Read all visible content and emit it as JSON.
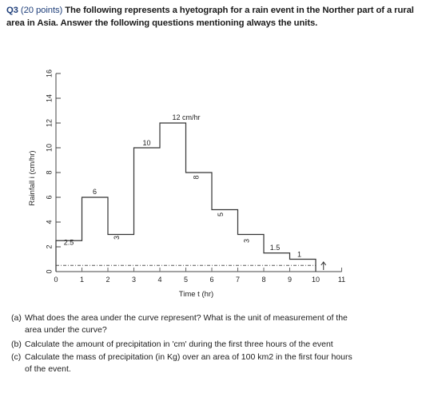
{
  "question": {
    "label": "Q3",
    "points": "(20 points)",
    "text": "The following represents a hyetograph for a rain event in the Norther part of a rural area in Asia.  Answer the following questions mentioning always the units."
  },
  "chart_data": {
    "type": "bar",
    "xlabel": "Time t (hr)",
    "ylabel": "Rainfall i (cm/hr)",
    "xlim": [
      0,
      11
    ],
    "ylim": [
      0,
      16
    ],
    "x_ticks": [
      0,
      1,
      2,
      3,
      4,
      5,
      6,
      7,
      8,
      9,
      10,
      11
    ],
    "y_ticks": [
      0,
      2,
      4,
      6,
      8,
      10,
      12,
      14,
      16
    ],
    "y_tick_labels": [
      "0",
      "2",
      "4",
      "6",
      "8",
      "10",
      "12",
      "14",
      "16"
    ],
    "x_tick_labels": [
      "0",
      "1",
      "2",
      "3",
      "4",
      "5",
      "6",
      "7",
      "8",
      "9",
      "10",
      "11"
    ],
    "bars": [
      {
        "x0": 0,
        "x1": 1,
        "value": 2.5,
        "label": "2.5"
      },
      {
        "x0": 1,
        "x1": 2,
        "value": 6,
        "label": "6"
      },
      {
        "x0": 2,
        "x1": 3,
        "value": 3,
        "label": "3"
      },
      {
        "x0": 3,
        "x1": 4,
        "value": 10,
        "label": "10"
      },
      {
        "x0": 4,
        "x1": 5,
        "value": 12,
        "label": "12 cm/hr"
      },
      {
        "x0": 5,
        "x1": 6,
        "value": 8,
        "label": "8"
      },
      {
        "x0": 6,
        "x1": 7,
        "value": 5,
        "label": "5"
      },
      {
        "x0": 7,
        "x1": 8,
        "value": 3,
        "label": "3"
      },
      {
        "x0": 8,
        "x1": 9,
        "value": 1.5,
        "label": "1.5"
      },
      {
        "x0": 9,
        "x1": 10,
        "value": 1,
        "label": "1"
      }
    ],
    "dashed_baseline": 0.5,
    "grid": false
  },
  "sub_questions": [
    {
      "letter": "(a)",
      "lines": [
        "What does the area under the curve represent? What is the unit of measurement of the",
        "area under the curve?"
      ]
    },
    {
      "letter": "(b)",
      "lines": [
        "Calculate the amount of precipitation in 'cm' during the first three hours of the event"
      ]
    },
    {
      "letter": "(c)",
      "lines": [
        "Calculate the mass of precipitation (in Kg) over an area of 100 km2 in the first four hours",
        "of the event."
      ]
    }
  ]
}
